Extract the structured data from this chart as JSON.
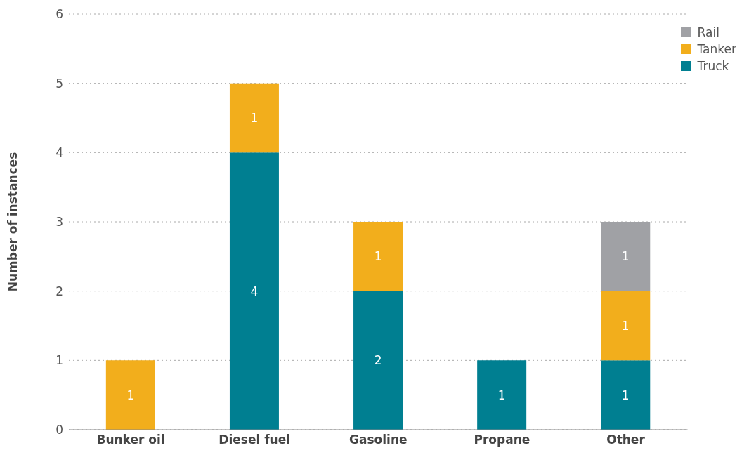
{
  "chart_data": {
    "type": "bar",
    "stacked": true,
    "ylabel": "Number of instances",
    "categories": [
      "Bunker oil",
      "Diesel fuel",
      "Gasoline",
      "Propane",
      "Other"
    ],
    "series": [
      {
        "name": "Truck",
        "color": "#007f91",
        "values": [
          null,
          4,
          2,
          1,
          1
        ]
      },
      {
        "name": "Tanker",
        "color": "#f2ae1c",
        "values": [
          1,
          1,
          1,
          null,
          1
        ]
      },
      {
        "name": "Rail",
        "color": "#a0a1a5",
        "values": [
          null,
          null,
          null,
          null,
          1
        ]
      }
    ],
    "ylim": [
      0,
      6
    ],
    "yticks": [
      0,
      1,
      2,
      3,
      4,
      5,
      6
    ],
    "grid": "y",
    "legend": "top right",
    "data_labels": true
  }
}
